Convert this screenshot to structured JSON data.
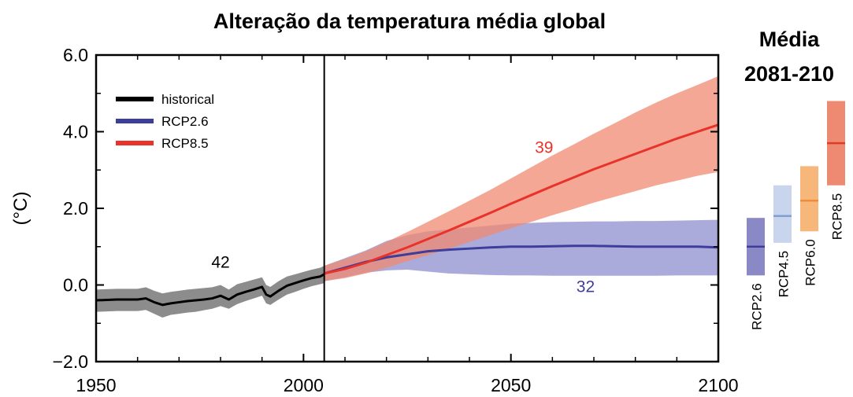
{
  "chart_data": {
    "type": "line",
    "title": "Alteração da temperatura média global",
    "ylabel": "(°C)",
    "xlabel": "",
    "xlim": [
      1950,
      2100
    ],
    "ylim": [
      -2.0,
      6.0
    ],
    "xticks": [
      1950,
      2000,
      2050,
      2100
    ],
    "xtick_labels": [
      "1950",
      "2000",
      "2050",
      "2100"
    ],
    "yticks": [
      -2.0,
      0.0,
      2.0,
      4.0,
      6.0
    ],
    "ytick_labels": [
      "−2.0",
      "0.0",
      "2.0",
      "4.0",
      "6.0"
    ],
    "grid": false,
    "legend_position": "top-left",
    "divider_year": 2005,
    "series": [
      {
        "name": "historical",
        "color": "#000000",
        "band_color": "#8c8c8c",
        "x": [
          1950,
          1955,
          1960,
          1962,
          1964,
          1966,
          1968,
          1970,
          1972,
          1974,
          1976,
          1978,
          1980,
          1982,
          1984,
          1986,
          1988,
          1990,
          1991,
          1992,
          1994,
          1996,
          1998,
          2000,
          2002,
          2004,
          2005
        ],
        "values": [
          -0.4,
          -0.38,
          -0.38,
          -0.35,
          -0.45,
          -0.52,
          -0.48,
          -0.45,
          -0.42,
          -0.4,
          -0.38,
          -0.35,
          -0.28,
          -0.38,
          -0.25,
          -0.18,
          -0.12,
          -0.05,
          -0.25,
          -0.3,
          -0.15,
          -0.02,
          0.05,
          0.12,
          0.18,
          0.22,
          0.28
        ],
        "lower": [
          -0.7,
          -0.68,
          -0.68,
          -0.65,
          -0.75,
          -0.85,
          -0.78,
          -0.75,
          -0.72,
          -0.7,
          -0.66,
          -0.62,
          -0.55,
          -0.62,
          -0.5,
          -0.42,
          -0.35,
          -0.28,
          -0.48,
          -0.52,
          -0.38,
          -0.25,
          -0.18,
          -0.1,
          -0.03,
          0.02,
          0.05
        ],
        "upper": [
          -0.12,
          -0.1,
          -0.1,
          -0.06,
          -0.15,
          -0.22,
          -0.18,
          -0.15,
          -0.12,
          -0.1,
          -0.08,
          -0.06,
          0.0,
          -0.12,
          0.02,
          0.08,
          0.14,
          0.2,
          0.0,
          -0.05,
          0.1,
          0.22,
          0.28,
          0.34,
          0.4,
          0.45,
          0.5
        ],
        "count_label": "42",
        "count_at": [
          1980,
          0.45
        ]
      },
      {
        "name": "RCP2.6",
        "color": "#3d3d9b",
        "band_color": "#8f8fcf",
        "x": [
          2005,
          2010,
          2015,
          2020,
          2025,
          2030,
          2035,
          2040,
          2045,
          2050,
          2055,
          2060,
          2065,
          2070,
          2075,
          2080,
          2085,
          2090,
          2095,
          2100
        ],
        "values": [
          0.3,
          0.45,
          0.6,
          0.72,
          0.8,
          0.88,
          0.92,
          0.95,
          0.98,
          1.0,
          1.0,
          1.01,
          1.02,
          1.02,
          1.01,
          1.0,
          1.0,
          1.0,
          1.0,
          0.98
        ],
        "lower": [
          0.1,
          0.2,
          0.32,
          0.38,
          0.4,
          0.35,
          0.3,
          0.28,
          0.26,
          0.25,
          0.25,
          0.24,
          0.24,
          0.24,
          0.24,
          0.24,
          0.24,
          0.25,
          0.25,
          0.25
        ],
        "upper": [
          0.5,
          0.7,
          0.9,
          1.15,
          1.3,
          1.4,
          1.45,
          1.5,
          1.55,
          1.6,
          1.62,
          1.64,
          1.65,
          1.66,
          1.66,
          1.67,
          1.67,
          1.68,
          1.69,
          1.7
        ],
        "count_label": "32",
        "count_at": [
          2068,
          -0.18
        ]
      },
      {
        "name": "RCP8.5",
        "color": "#e8322a",
        "band_color": "#f08a70",
        "x": [
          2005,
          2010,
          2015,
          2020,
          2025,
          2030,
          2035,
          2040,
          2045,
          2050,
          2055,
          2060,
          2065,
          2070,
          2075,
          2080,
          2085,
          2090,
          2095,
          2100
        ],
        "values": [
          0.3,
          0.42,
          0.58,
          0.78,
          0.98,
          1.2,
          1.42,
          1.65,
          1.88,
          2.12,
          2.35,
          2.58,
          2.8,
          3.02,
          3.22,
          3.42,
          3.62,
          3.82,
          4.0,
          4.18
        ],
        "lower": [
          0.1,
          0.18,
          0.3,
          0.45,
          0.62,
          0.78,
          0.95,
          1.12,
          1.3,
          1.48,
          1.65,
          1.82,
          1.98,
          2.15,
          2.3,
          2.45,
          2.6,
          2.72,
          2.85,
          2.95
        ],
        "upper": [
          0.5,
          0.68,
          0.88,
          1.12,
          1.38,
          1.65,
          1.92,
          2.2,
          2.48,
          2.78,
          3.08,
          3.38,
          3.66,
          3.95,
          4.22,
          4.5,
          4.76,
          5.0,
          5.22,
          5.45
        ],
        "count_label": "39",
        "count_at": [
          2058,
          3.45
        ]
      }
    ],
    "side_panel": {
      "title": "Média\n2081-210",
      "bars": [
        {
          "name": "RCP2.6",
          "median": 1.0,
          "low": 0.25,
          "high": 1.75,
          "fill": "#8a88c5",
          "line": "#3d3d9b"
        },
        {
          "name": "RCP4.5",
          "median": 1.8,
          "low": 1.1,
          "high": 2.6,
          "fill": "#c8d5ec",
          "line": "#7f9fd0"
        },
        {
          "name": "RCP6.0",
          "median": 2.2,
          "low": 1.4,
          "high": 3.1,
          "fill": "#f7b67a",
          "line": "#f08c38"
        },
        {
          "name": "RCP8.5",
          "median": 3.7,
          "low": 2.6,
          "high": 4.8,
          "fill": "#ef8a72",
          "line": "#e03a24"
        }
      ]
    }
  }
}
